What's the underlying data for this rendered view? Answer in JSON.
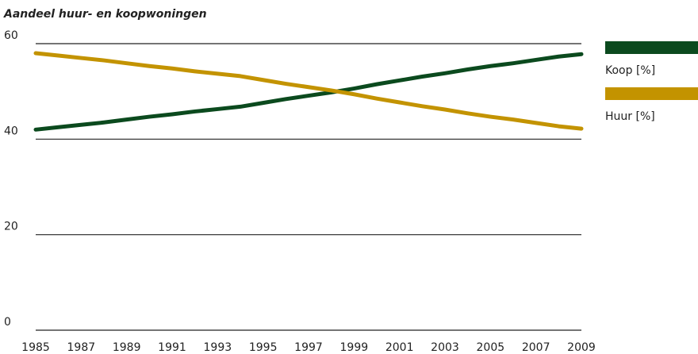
{
  "chart_data": {
    "type": "line",
    "title": "Aandeel huur- en koopwoningen",
    "x": [
      1985,
      1986,
      1987,
      1988,
      1989,
      1990,
      1991,
      1992,
      1993,
      1994,
      1995,
      1996,
      1997,
      1998,
      1999,
      2000,
      2001,
      2002,
      2003,
      2004,
      2005,
      2006,
      2007,
      2008,
      2009
    ],
    "series": [
      {
        "name": "Koop [%]",
        "color": "#0b4a1e",
        "values": [
          42.0,
          42.5,
          43.0,
          43.5,
          44.1,
          44.7,
          45.2,
          45.8,
          46.3,
          46.8,
          47.6,
          48.4,
          49.1,
          49.8,
          50.6,
          51.5,
          52.3,
          53.1,
          53.8,
          54.6,
          55.3,
          55.9,
          56.6,
          57.3,
          57.8
        ]
      },
      {
        "name": "Huur [%]",
        "color": "#c39300",
        "values": [
          58.0,
          57.5,
          57.0,
          56.5,
          55.9,
          55.3,
          54.8,
          54.2,
          53.7,
          53.2,
          52.4,
          51.6,
          50.9,
          50.2,
          49.4,
          48.5,
          47.7,
          46.9,
          46.2,
          45.4,
          44.7,
          44.1,
          43.4,
          42.7,
          42.2
        ]
      }
    ],
    "xlim": [
      1985,
      2009
    ],
    "xticks": [
      1985,
      1987,
      1989,
      1991,
      1993,
      1995,
      1997,
      1999,
      2001,
      2003,
      2005,
      2007,
      2009
    ],
    "ylim": [
      0,
      60
    ],
    "yticks": [
      0,
      20,
      40,
      60
    ],
    "grid": true,
    "legend": "right"
  }
}
